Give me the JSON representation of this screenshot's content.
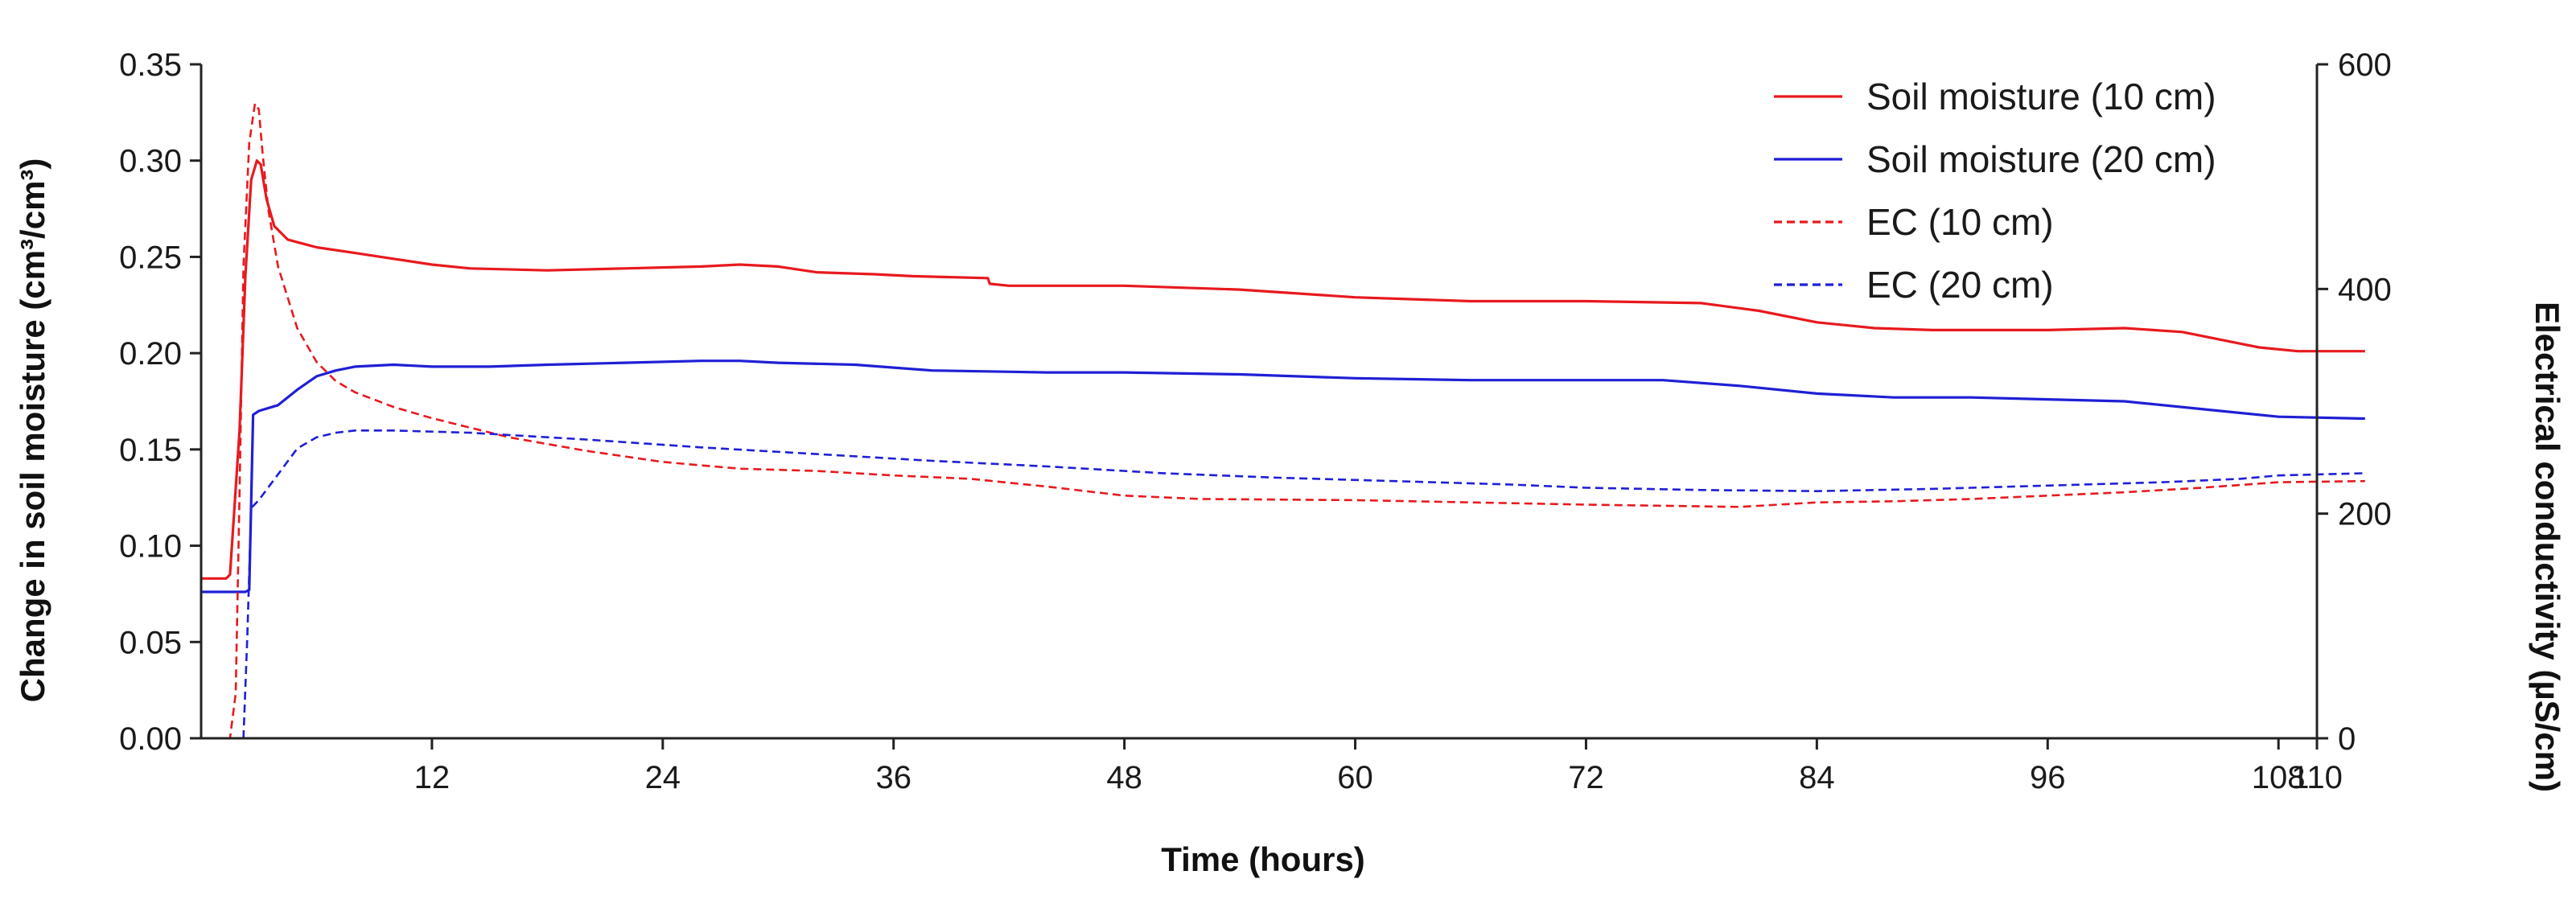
{
  "chart_data": {
    "type": "line",
    "title": "",
    "xlabel": "Time (hours)",
    "ylabel_left": "Change in soil moisture (cm³/cm³)",
    "ylabel_right": "Electrical conductivity (µS/cm)",
    "xlim": [
      0,
      110
    ],
    "ylim_left": [
      0,
      0.35
    ],
    "ylim_right": [
      0,
      600
    ],
    "x_ticks": [
      12,
      24,
      36,
      48,
      60,
      72,
      84,
      96,
      108,
      110
    ],
    "x_tick_labels": [
      "12",
      "24",
      "36",
      "48",
      "60",
      "72",
      "84",
      "96",
      "108",
      "110"
    ],
    "y_left_ticks": [
      0,
      0.05,
      0.1,
      0.15,
      0.2,
      0.25,
      0.3,
      0.35
    ],
    "y_left_tick_labels": [
      "0.00",
      "0.05",
      "0.10",
      "0.15",
      "0.20",
      "0.25",
      "0.30",
      "0.35"
    ],
    "y_right_ticks": [
      0,
      200,
      400,
      600
    ],
    "y_right_tick_labels": [
      "0",
      "200",
      "400",
      "600"
    ],
    "grid": false,
    "legend_position": "top-right",
    "colors": {
      "red": "#e8191e",
      "blue": "#1f1fd6"
    },
    "series": [
      {
        "name": "Soil moisture (10 cm)",
        "axis": "left",
        "color": "#e8191e",
        "dash": "solid",
        "points": [
          [
            0,
            0.083
          ],
          [
            1.3,
            0.083
          ],
          [
            1.5,
            0.085
          ],
          [
            2.0,
            0.16
          ],
          [
            2.3,
            0.24
          ],
          [
            2.6,
            0.29
          ],
          [
            2.9,
            0.3
          ],
          [
            3.1,
            0.298
          ],
          [
            3.4,
            0.28
          ],
          [
            3.8,
            0.266
          ],
          [
            4.5,
            0.259
          ],
          [
            6,
            0.255
          ],
          [
            8,
            0.252
          ],
          [
            10,
            0.249
          ],
          [
            12,
            0.246
          ],
          [
            14,
            0.244
          ],
          [
            18,
            0.243
          ],
          [
            22,
            0.244
          ],
          [
            26,
            0.245
          ],
          [
            28,
            0.246
          ],
          [
            30,
            0.245
          ],
          [
            32,
            0.242
          ],
          [
            35,
            0.241
          ],
          [
            37,
            0.24
          ],
          [
            40.9,
            0.239
          ],
          [
            41,
            0.236
          ],
          [
            42,
            0.235
          ],
          [
            48,
            0.235
          ],
          [
            54,
            0.233
          ],
          [
            60,
            0.229
          ],
          [
            66,
            0.227
          ],
          [
            72,
            0.227
          ],
          [
            78,
            0.226
          ],
          [
            81,
            0.222
          ],
          [
            84,
            0.216
          ],
          [
            87,
            0.213
          ],
          [
            90,
            0.212
          ],
          [
            96,
            0.212
          ],
          [
            100,
            0.213
          ],
          [
            103,
            0.211
          ],
          [
            105,
            0.207
          ],
          [
            107,
            0.203
          ],
          [
            109,
            0.201
          ],
          [
            112.5,
            0.201
          ]
        ]
      },
      {
        "name": "Soil moisture (20 cm)",
        "axis": "left",
        "color": "#1f1fd6",
        "dash": "solid",
        "points": [
          [
            0,
            0.076
          ],
          [
            2.3,
            0.076
          ],
          [
            2.5,
            0.077
          ],
          [
            2.7,
            0.168
          ],
          [
            3.0,
            0.17
          ],
          [
            4,
            0.173
          ],
          [
            5,
            0.181
          ],
          [
            6,
            0.188
          ],
          [
            7,
            0.191
          ],
          [
            8,
            0.193
          ],
          [
            10,
            0.194
          ],
          [
            12,
            0.193
          ],
          [
            15,
            0.193
          ],
          [
            18,
            0.194
          ],
          [
            22,
            0.195
          ],
          [
            26,
            0.196
          ],
          [
            28,
            0.196
          ],
          [
            30,
            0.195
          ],
          [
            34,
            0.194
          ],
          [
            38,
            0.191
          ],
          [
            44,
            0.19
          ],
          [
            48,
            0.19
          ],
          [
            54,
            0.189
          ],
          [
            60,
            0.187
          ],
          [
            66,
            0.186
          ],
          [
            72,
            0.186
          ],
          [
            76,
            0.186
          ],
          [
            80,
            0.183
          ],
          [
            84,
            0.179
          ],
          [
            88,
            0.177
          ],
          [
            92,
            0.177
          ],
          [
            96,
            0.176
          ],
          [
            100,
            0.175
          ],
          [
            104,
            0.171
          ],
          [
            108,
            0.167
          ],
          [
            112.5,
            0.166
          ]
        ]
      },
      {
        "name": "EC (10 cm)",
        "axis": "right",
        "color": "#e8191e",
        "dash": "dashed",
        "points": [
          [
            0,
            0
          ],
          [
            1.5,
            0
          ],
          [
            1.8,
            40
          ],
          [
            2.0,
            220
          ],
          [
            2.2,
            420
          ],
          [
            2.5,
            530
          ],
          [
            2.8,
            565
          ],
          [
            3.0,
            560
          ],
          [
            3.2,
            520
          ],
          [
            3.5,
            470
          ],
          [
            4,
            420
          ],
          [
            5,
            365
          ],
          [
            6,
            335
          ],
          [
            7,
            318
          ],
          [
            8,
            308
          ],
          [
            10,
            295
          ],
          [
            12,
            285
          ],
          [
            16,
            268
          ],
          [
            20,
            256
          ],
          [
            24,
            246
          ],
          [
            28,
            240
          ],
          [
            32,
            238
          ],
          [
            36,
            234
          ],
          [
            40,
            231
          ],
          [
            44,
            224
          ],
          [
            48,
            216
          ],
          [
            52,
            213
          ],
          [
            60,
            212
          ],
          [
            66,
            210
          ],
          [
            72,
            208
          ],
          [
            76,
            207
          ],
          [
            80,
            206
          ],
          [
            84,
            210
          ],
          [
            88,
            211
          ],
          [
            92,
            213
          ],
          [
            96,
            216
          ],
          [
            100,
            219
          ],
          [
            104,
            223
          ],
          [
            108,
            228
          ],
          [
            112.5,
            229
          ]
        ]
      },
      {
        "name": "EC (20 cm)",
        "axis": "right",
        "color": "#1f1fd6",
        "dash": "dashed",
        "points": [
          [
            2.2,
            0
          ],
          [
            2.4,
            90
          ],
          [
            2.6,
            205
          ],
          [
            3.0,
            212
          ],
          [
            4,
            235
          ],
          [
            5,
            258
          ],
          [
            6,
            268
          ],
          [
            7,
            272
          ],
          [
            8,
            274
          ],
          [
            10,
            274
          ],
          [
            14,
            272
          ],
          [
            20,
            266
          ],
          [
            26,
            259
          ],
          [
            32,
            253
          ],
          [
            38,
            247
          ],
          [
            44,
            242
          ],
          [
            50,
            236
          ],
          [
            56,
            232
          ],
          [
            62,
            229
          ],
          [
            68,
            226
          ],
          [
            72,
            223
          ],
          [
            78,
            221
          ],
          [
            84,
            220
          ],
          [
            90,
            222
          ],
          [
            96,
            225
          ],
          [
            102,
            228
          ],
          [
            106,
            231
          ],
          [
            108,
            234
          ],
          [
            112.5,
            236
          ]
        ]
      }
    ]
  }
}
